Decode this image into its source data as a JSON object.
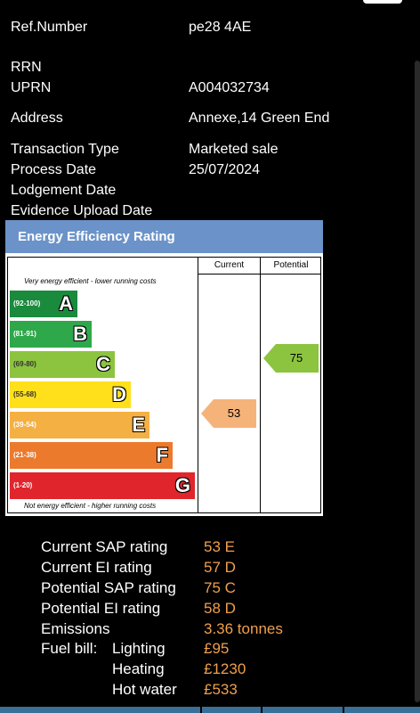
{
  "details": {
    "ref_number_label": "Ref.Number",
    "ref_number_value": "pe28 4AE",
    "rrn_label": "RRN",
    "uprn_label": "UPRN",
    "uprn_value": "A004032734",
    "address_label": "Address",
    "address_value": "Annexe,14 Green End",
    "transaction_type_label": "Transaction Type",
    "transaction_type_value": "Marketed sale",
    "process_date_label": "Process Date",
    "process_date_value": "25/07/2024",
    "lodgement_date_label": "Lodgement Date",
    "evidence_upload_date_label": "Evidence Upload Date"
  },
  "epc": {
    "title": "Energy Efficiency Rating",
    "col_current": "Current",
    "col_potential": "Potential",
    "top_note": "Very energy efficient - lower running costs",
    "bottom_note": "Not energy efficient - higher running costs",
    "bands": [
      {
        "range": "(92-100)",
        "letter": "A",
        "color": "#1a8a3c"
      },
      {
        "range": "(81-91)",
        "letter": "B",
        "color": "#2ea84a"
      },
      {
        "range": "(69-80)",
        "letter": "C",
        "color": "#8cc43f"
      },
      {
        "range": "(55-68)",
        "letter": "D",
        "color": "#ffe01b"
      },
      {
        "range": "(39-54)",
        "letter": "E",
        "color": "#f5b043"
      },
      {
        "range": "(21-38)",
        "letter": "F",
        "color": "#ec7a2d"
      },
      {
        "range": "(1-20)",
        "letter": "G",
        "color": "#e0262c"
      }
    ],
    "current_rating": 53,
    "current_label": "53",
    "current_color": "#f5b37a",
    "potential_rating": 75,
    "potential_label": "75",
    "potential_color": "#8cc43f"
  },
  "stats": {
    "current_sap_label": "Current SAP rating",
    "current_sap_value": "53 E",
    "current_ei_label": "Current EI rating",
    "current_ei_value": "57 D",
    "potential_sap_label": "Potential SAP rating",
    "potential_sap_value": "75 C",
    "potential_ei_label": "Potential EI rating",
    "potential_ei_value": "58 D",
    "emissions_label": "Emissions",
    "emissions_value": "3.36 tonnes",
    "fuel_bill_label": "Fuel bill:",
    "lighting_label": "Lighting",
    "lighting_value": "£95",
    "heating_label": "Heating",
    "heating_value": "£1230",
    "hot_water_label": "Hot water",
    "hot_water_value": "£533"
  },
  "colors": {
    "accent": "#f0a04b",
    "header_blue": "#6b93c9"
  }
}
